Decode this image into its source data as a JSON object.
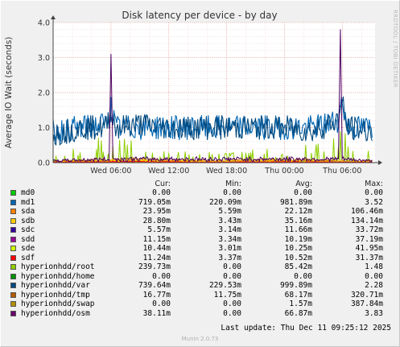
{
  "chart_data": {
    "type": "line",
    "title": "Disk latency per device - by day",
    "ylabel": "Average IO Wait (seconds)",
    "xlabel": "",
    "ylim": [
      0,
      4
    ],
    "yticks": [
      "0.0",
      "1.0",
      "2.0",
      "3.0",
      "4.0"
    ],
    "xticks": [
      "Wed 06:00",
      "Wed 12:00",
      "Wed 18:00",
      "Thu 00:00",
      "Thu 06:00"
    ],
    "grid": true,
    "approx_x_hours": "00:00 Wed to ~09:25 Thu (x in hours since Wed 00:00)",
    "series": [
      {
        "name": "md1",
        "color": "#0066b3",
        "x": [
          0,
          3,
          5.5,
          6,
          6.5,
          9,
          12,
          15,
          18,
          21,
          24,
          27,
          29.5,
          30,
          30.5,
          33
        ],
        "y": [
          0.9,
          1.0,
          1.1,
          1.6,
          1.0,
          1.0,
          1.0,
          1.0,
          1.0,
          1.0,
          1.0,
          1.0,
          1.2,
          1.8,
          1.0,
          1.0
        ]
      },
      {
        "name": "hyperionhdd/var",
        "color": "#00487d",
        "x": [
          0,
          3,
          5.5,
          6,
          6.5,
          9,
          12,
          15,
          18,
          21,
          24,
          27,
          29.5,
          30,
          30.5,
          33
        ],
        "y": [
          0.8,
          1.0,
          1.0,
          1.5,
          1.0,
          1.1,
          1.0,
          1.0,
          1.0,
          1.0,
          1.0,
          0.9,
          1.2,
          1.7,
          1.0,
          0.9
        ]
      },
      {
        "name": "hyperionhdd/osm",
        "color": "#4d0063",
        "x": [
          0,
          5.8,
          6,
          6.2,
          29.6,
          29.8,
          30,
          33
        ],
        "y": [
          0.05,
          0.1,
          3.1,
          0.1,
          0.1,
          3.8,
          0.1,
          0.05
        ]
      },
      {
        "name": "hyperionhdd/root",
        "color": "#8fce00",
        "x": [
          0,
          6,
          12,
          18,
          24,
          30,
          33
        ],
        "y": [
          0.1,
          0.5,
          0.2,
          0.3,
          0.2,
          0.6,
          0.2
        ]
      },
      {
        "name": "sda",
        "color": "#ff8000",
        "x": [
          0,
          8,
          16,
          24,
          33
        ],
        "y": [
          0.02,
          0.05,
          0.03,
          0.04,
          0.02
        ]
      },
      {
        "name": "sdb",
        "color": "#ffcc00",
        "x": [
          0,
          8,
          16,
          24,
          33
        ],
        "y": [
          0.03,
          0.08,
          0.04,
          0.06,
          0.03
        ]
      },
      {
        "name": "sdc",
        "color": "#330099",
        "x": [
          0,
          8,
          16,
          24,
          33
        ],
        "y": [
          0.01,
          0.02,
          0.01,
          0.02,
          0.01
        ]
      },
      {
        "name": "sdd",
        "color": "#990099",
        "x": [
          0,
          8,
          16,
          24,
          33
        ],
        "y": [
          0.01,
          0.03,
          0.01,
          0.02,
          0.01
        ]
      },
      {
        "name": "sde",
        "color": "#ccff00",
        "x": [
          0,
          8,
          16,
          24,
          33
        ],
        "y": [
          0.01,
          0.03,
          0.01,
          0.02,
          0.01
        ]
      },
      {
        "name": "sdf",
        "color": "#ff0000",
        "x": [
          0,
          8,
          16,
          24,
          33
        ],
        "y": [
          0.01,
          0.03,
          0.01,
          0.02,
          0.01
        ]
      },
      {
        "name": "hyperionhdd/tmp",
        "color": "#b35a00",
        "x": [
          0,
          8,
          16,
          24,
          33
        ],
        "y": [
          0.04,
          0.09,
          0.05,
          0.08,
          0.04
        ]
      },
      {
        "name": "hyperionhdd/swap",
        "color": "#b38f00",
        "x": [
          0,
          8,
          16,
          24,
          33
        ],
        "y": [
          0.0,
          0.01,
          0.0,
          0.0,
          0.0
        ]
      }
    ]
  },
  "legend": {
    "headers": {
      "cur": "Cur:",
      "min": "Min:",
      "avg": "Avg:",
      "max": "Max:"
    },
    "rows": [
      {
        "name": "md0",
        "color": "#00cc00",
        "cur": "0.00",
        "min": "0.00",
        "avg": "0.00",
        "max": "0.00"
      },
      {
        "name": "md1",
        "color": "#0066b3",
        "cur": "719.05m",
        "min": "220.09m",
        "avg": "981.89m",
        "max": "3.52"
      },
      {
        "name": "sda",
        "color": "#ff8000",
        "cur": "23.95m",
        "min": "5.59m",
        "avg": "22.12m",
        "max": "106.46m"
      },
      {
        "name": "sdb",
        "color": "#ffcc00",
        "cur": "28.80m",
        "min": "3.43m",
        "avg": "35.16m",
        "max": "134.14m"
      },
      {
        "name": "sdc",
        "color": "#330099",
        "cur": "5.57m",
        "min": "3.14m",
        "avg": "11.66m",
        "max": "33.72m"
      },
      {
        "name": "sdd",
        "color": "#990099",
        "cur": "11.15m",
        "min": "3.34m",
        "avg": "10.19m",
        "max": "37.19m"
      },
      {
        "name": "sde",
        "color": "#ccff00",
        "cur": "10.44m",
        "min": "3.01m",
        "avg": "10.25m",
        "max": "41.95m"
      },
      {
        "name": "sdf",
        "color": "#ff0000",
        "cur": "11.24m",
        "min": "3.37m",
        "avg": "10.52m",
        "max": "31.37m"
      },
      {
        "name": "hyperionhdd/root",
        "color": "#8fce00",
        "cur": "239.73m",
        "min": "0.00",
        "avg": "85.42m",
        "max": "1.48"
      },
      {
        "name": "hyperionhdd/home",
        "color": "#008f00",
        "cur": "0.00",
        "min": "0.00",
        "avg": "0.00",
        "max": "0.00"
      },
      {
        "name": "hyperionhdd/var",
        "color": "#00487d",
        "cur": "739.64m",
        "min": "229.53m",
        "avg": "999.89m",
        "max": "2.28"
      },
      {
        "name": "hyperionhdd/tmp",
        "color": "#b35a00",
        "cur": "16.77m",
        "min": "11.75m",
        "avg": "68.17m",
        "max": "320.71m"
      },
      {
        "name": "hyperionhdd/swap",
        "color": "#b38f00",
        "cur": "0.00",
        "min": "0.00",
        "avg": "1.57m",
        "max": "387.84m"
      },
      {
        "name": "hyperionhdd/osm",
        "color": "#6b006b",
        "cur": "38.11m",
        "min": "0.00",
        "avg": "66.87m",
        "max": "3.83"
      }
    ]
  },
  "footer": {
    "last_update": "Last update: Thu Dec 11 09:25:12 2025",
    "version": "Munin 2.0.73"
  },
  "watermark": "RRDTOOL / TOBI OETIKER"
}
